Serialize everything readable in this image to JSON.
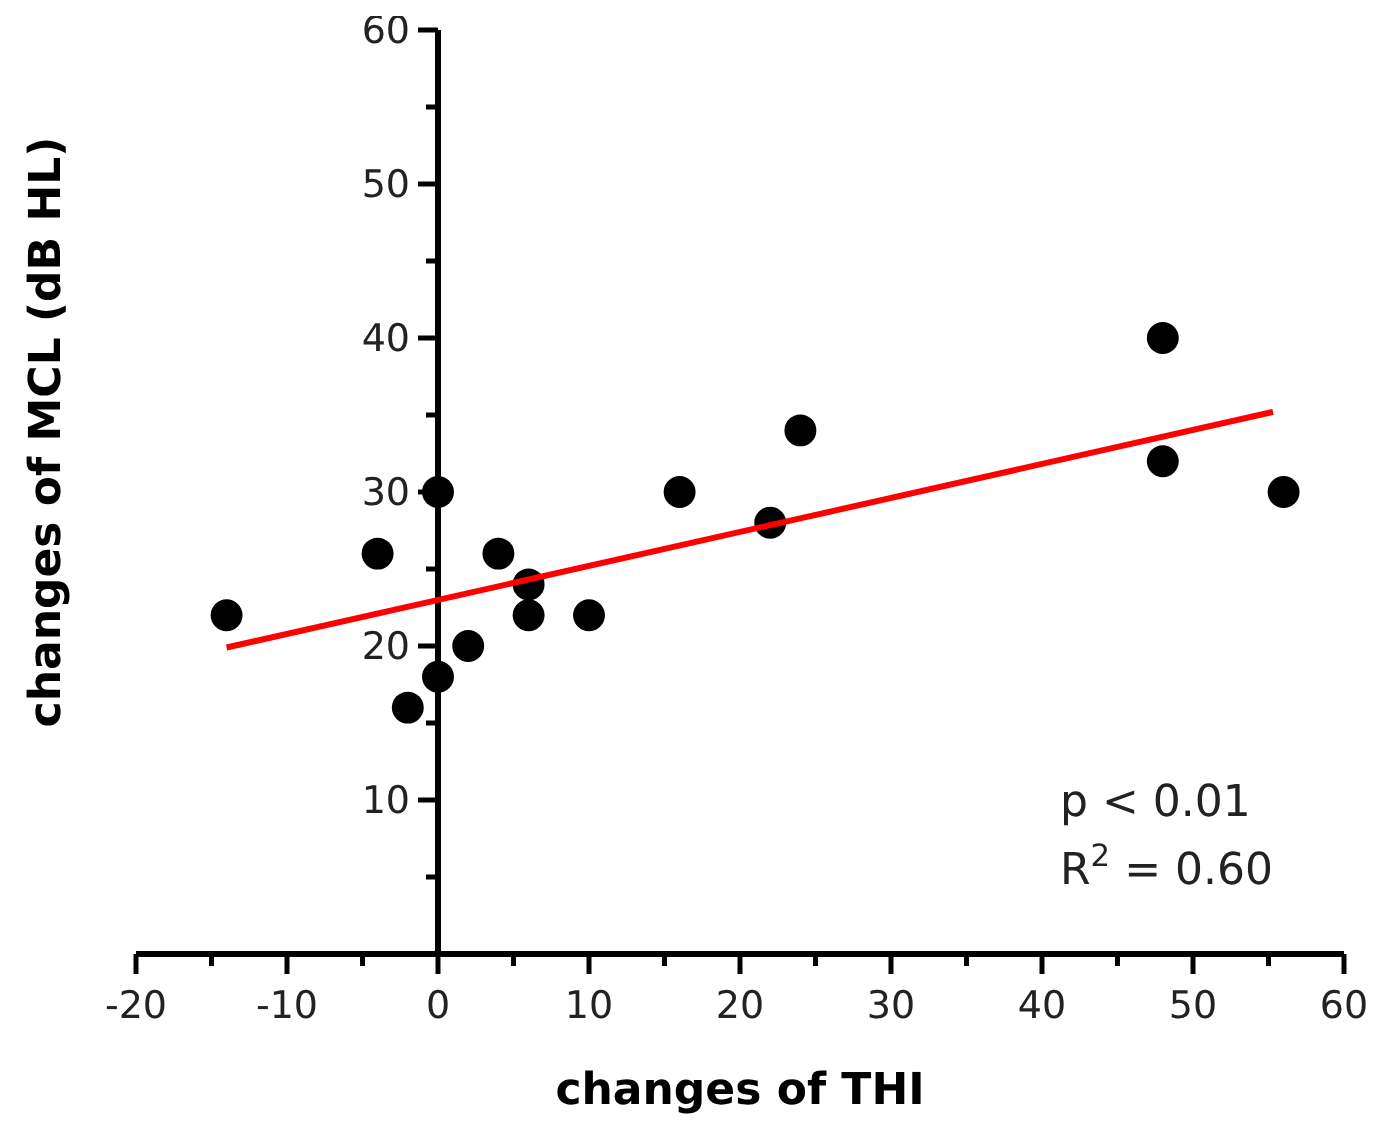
{
  "chart_data": {
    "type": "scatter",
    "xlabel": "changes of THI",
    "ylabel": "changes of MCL (dB HL)",
    "xlim": [
      -20,
      60
    ],
    "ylim": [
      0,
      60
    ],
    "xticks": [
      -20,
      {
        "value": -15,
        "label": null
      },
      -10,
      {
        "value": -5,
        "label": null
      },
      0,
      {
        "value": 5,
        "label": null
      },
      10,
      {
        "value": 15,
        "label": null
      },
      20,
      {
        "value": 25,
        "label": null
      },
      30,
      {
        "value": 35,
        "label": null
      },
      40,
      {
        "value": 45,
        "label": null
      },
      50,
      {
        "value": 55,
        "label": null
      },
      60
    ],
    "yticks": [
      {
        "value": 0,
        "label": null
      },
      {
        "value": 5,
        "label": null
      },
      10,
      {
        "value": 15,
        "label": null
      },
      20,
      {
        "value": 25,
        "label": null
      },
      30,
      {
        "value": 35,
        "label": null
      },
      40,
      {
        "value": 45,
        "label": null
      },
      50,
      {
        "value": 55,
        "label": null
      },
      60
    ],
    "grid": false,
    "marker": "circle",
    "series": [
      {
        "color": "#000000",
        "x": [
          -14,
          -4,
          -2,
          0,
          0,
          2,
          4,
          6,
          6,
          10,
          16,
          22,
          24,
          48,
          48,
          56
        ],
        "values": [
          22,
          26,
          16,
          18,
          30,
          20,
          26,
          24,
          22,
          22,
          30,
          28,
          34,
          40,
          32,
          30
        ]
      },
      {
        "type": "line",
        "color": "#ff0000",
        "marker": "none",
        "line_style": "solid",
        "x": [
          -14,
          55.3
        ],
        "values": [
          19.9,
          35.2
        ]
      }
    ],
    "annotations": [
      "p < 0.01",
      "R$^{2}$ = 0.60"
    ]
  }
}
